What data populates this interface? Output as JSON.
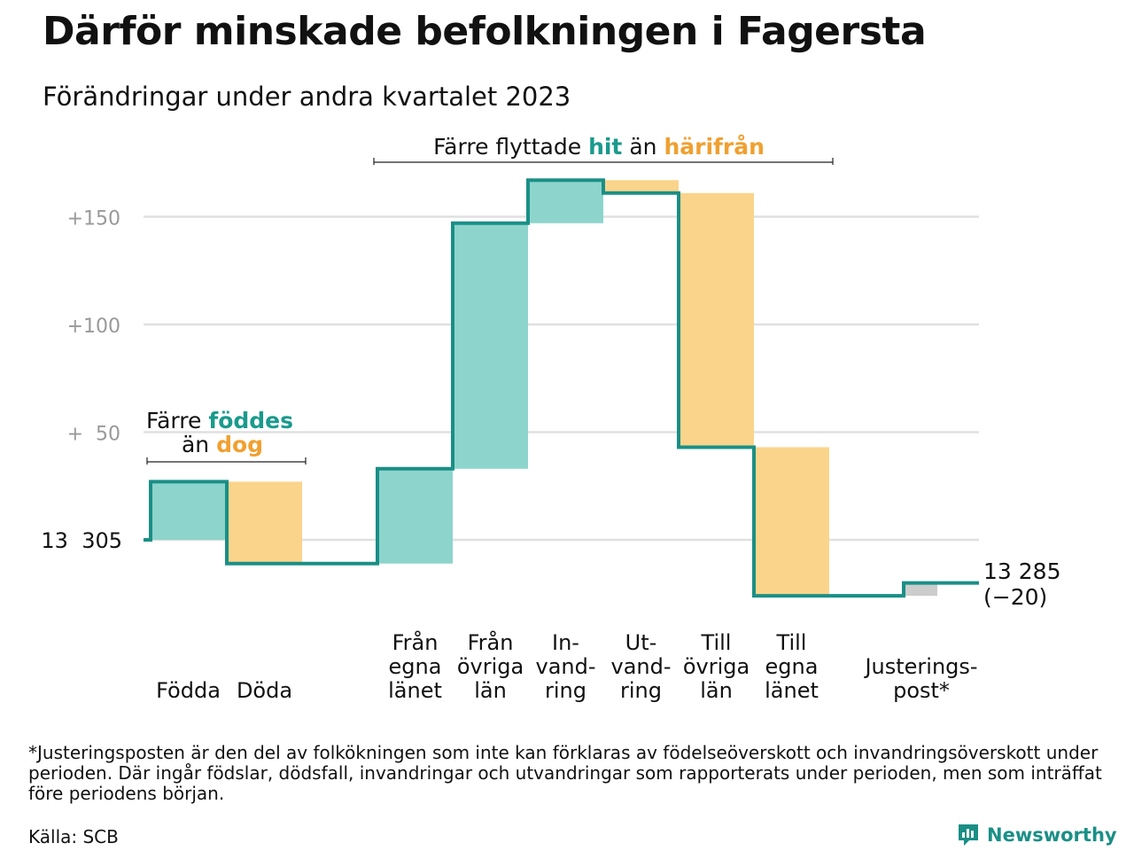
{
  "title": "Därför minskade befolkningen i Fagersta",
  "subtitle": "Förändringar under andra kvartalet 2023",
  "annotations": {
    "births": {
      "line1_prefix": "Färre ",
      "line1_emph": "föddes",
      "line2_prefix": "än ",
      "line2_emph": "dog"
    },
    "moves": {
      "prefix": "Färre flyttade ",
      "emph1": "hit",
      "mid": " än ",
      "emph2": "härifrån"
    }
  },
  "end_label": {
    "value": "13 285",
    "change": "(−20)"
  },
  "footnote": "*Justeringsposten är den del av folkökningen som inte kan förklaras av födelseöverskott och invandringsöverskott under perioden. Där ingår födslar, dödsfall, invandringar och utvandringar som rapporterats under perioden, men som inträffat före periodens början.",
  "source": "Källa: SCB",
  "logo": {
    "text": "Newsworthy",
    "icon": "newsworthy-logo-icon"
  },
  "colors": {
    "increase": "#8dd4cc",
    "decrease": "#fad48b",
    "adjustment": "#cccccc",
    "line": "#1a8f86",
    "grid": "#e0e0e0",
    "teal_text": "#1a9a8c",
    "orange_text": "#f0a030"
  },
  "chart_data": {
    "type": "waterfall",
    "start_value": 13305,
    "end_value": 13285,
    "total_change": -20,
    "y_ticks": [
      {
        "value": 150,
        "label": "+150"
      },
      {
        "value": 100,
        "label": "+100"
      },
      {
        "value": 50,
        "label": "+  50"
      },
      {
        "value": 0,
        "label": "13  305"
      }
    ],
    "ylim": [
      -30,
      175
    ],
    "steps": [
      {
        "category": "Födda",
        "label_lines": [
          "Födda"
        ],
        "value": 27,
        "kind": "increase"
      },
      {
        "category": "Döda",
        "label_lines": [
          "Döda"
        ],
        "value": -38,
        "kind": "decrease"
      },
      {
        "category": "Från egna länet",
        "label_lines": [
          "Från",
          "egna",
          "länet"
        ],
        "value": 44,
        "kind": "increase"
      },
      {
        "category": "Från övriga län",
        "label_lines": [
          "Från",
          "övriga",
          "län"
        ],
        "value": 114,
        "kind": "increase"
      },
      {
        "category": "Invandring",
        "label_lines": [
          "In-",
          "vand-",
          "ring"
        ],
        "value": 20,
        "kind": "increase"
      },
      {
        "category": "Utvandring",
        "label_lines": [
          "Ut-",
          "vand-",
          "ring"
        ],
        "value": -6,
        "kind": "decrease"
      },
      {
        "category": "Till övriga län",
        "label_lines": [
          "Till",
          "övriga",
          "län"
        ],
        "value": -118,
        "kind": "decrease"
      },
      {
        "category": "Till egna länet",
        "label_lines": [
          "Till",
          "egna",
          "länet"
        ],
        "value": -69,
        "kind": "decrease"
      },
      {
        "category": "Justeringspost*",
        "label_lines": [
          "Justerings-",
          "post*"
        ],
        "value": 6,
        "kind": "adjustment"
      }
    ]
  }
}
